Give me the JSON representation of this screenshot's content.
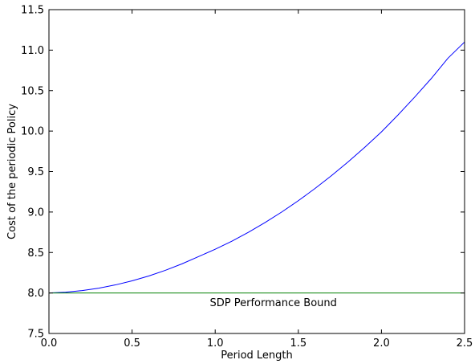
{
  "chart_data": {
    "type": "line",
    "title": "",
    "xlabel": "Period Length",
    "ylabel": "Cost of the periodic Policy",
    "xlim": [
      0.0,
      2.5
    ],
    "ylim": [
      7.5,
      11.5
    ],
    "xticks": [
      0.0,
      0.5,
      1.0,
      1.5,
      2.0,
      2.5
    ],
    "yticks": [
      7.5,
      8.0,
      8.5,
      9.0,
      9.5,
      10.0,
      10.5,
      11.0,
      11.5
    ],
    "xtick_labels": [
      "0.0",
      "0.5",
      "1.0",
      "1.5",
      "2.0",
      "2.5"
    ],
    "ytick_labels": [
      "7.5",
      "8.0",
      "8.5",
      "9.0",
      "9.5",
      "10.0",
      "10.5",
      "11.0",
      "11.5"
    ],
    "grid": false,
    "series": [
      {
        "color": "#0000ff",
        "x": [
          0.0,
          0.1,
          0.2,
          0.3,
          0.4,
          0.5,
          0.6,
          0.7,
          0.8,
          0.9,
          1.0,
          1.1,
          1.2,
          1.3,
          1.4,
          1.5,
          1.6,
          1.7,
          1.8,
          1.9,
          2.0,
          2.1,
          2.2,
          2.3,
          2.4,
          2.5
        ],
        "y": [
          8.0,
          8.01,
          8.03,
          8.06,
          8.1,
          8.15,
          8.21,
          8.28,
          8.36,
          8.45,
          8.54,
          8.64,
          8.75,
          8.87,
          9.0,
          9.14,
          9.29,
          9.45,
          9.62,
          9.8,
          9.99,
          10.2,
          10.42,
          10.65,
          10.9,
          11.1
        ]
      },
      {
        "color": "#008000",
        "x": [
          0.0,
          2.5
        ],
        "y": [
          8.0,
          8.0
        ]
      }
    ],
    "annotations": [
      {
        "text": "SDP Performance Bound",
        "x": 1.35,
        "y": 7.88
      }
    ]
  }
}
